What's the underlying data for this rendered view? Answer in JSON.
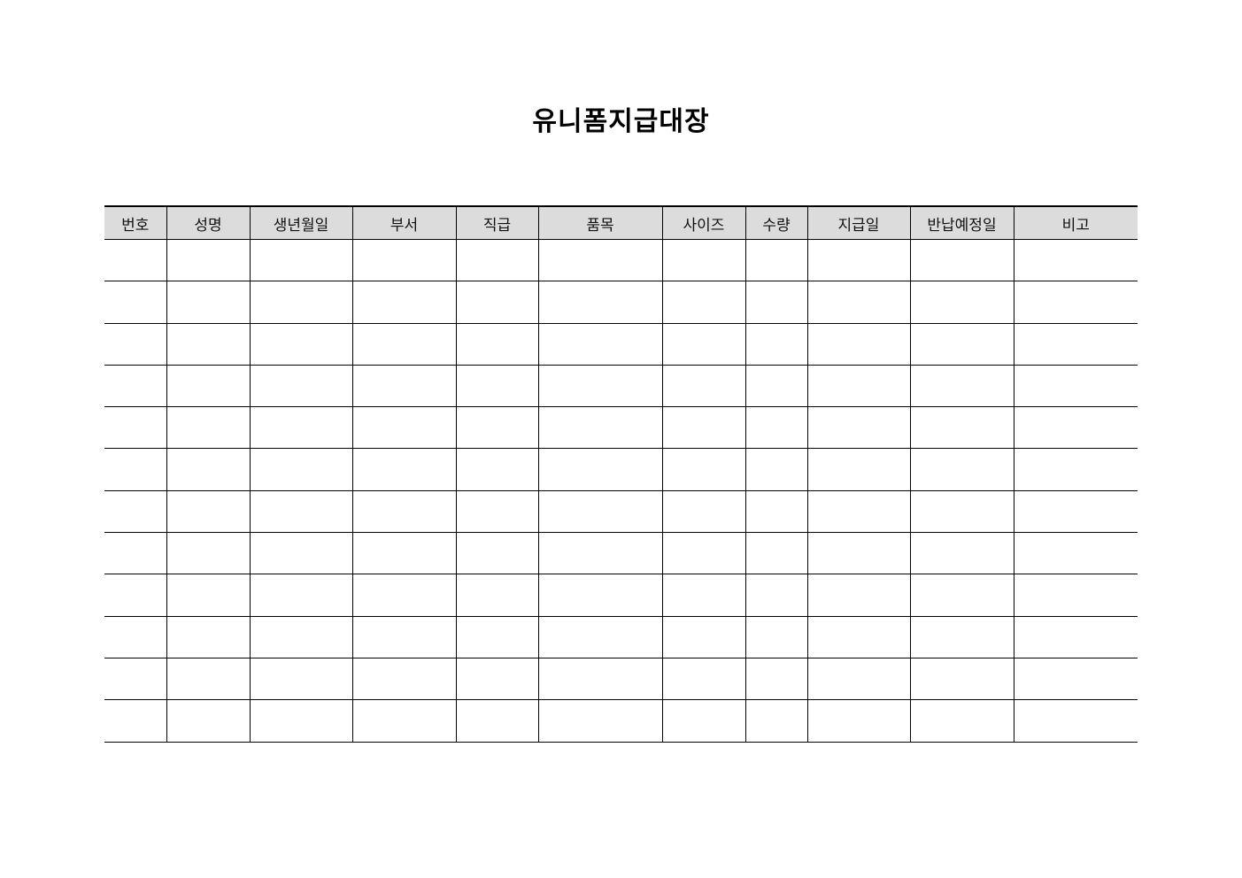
{
  "title": "유니폼지급대장",
  "columns": [
    "번호",
    "성명",
    "생년월일",
    "부서",
    "직급",
    "품목",
    "사이즈",
    "수량",
    "지급일",
    "반납예정일",
    "비고"
  ],
  "rows": [
    [
      "",
      "",
      "",
      "",
      "",
      "",
      "",
      "",
      "",
      "",
      ""
    ],
    [
      "",
      "",
      "",
      "",
      "",
      "",
      "",
      "",
      "",
      "",
      ""
    ],
    [
      "",
      "",
      "",
      "",
      "",
      "",
      "",
      "",
      "",
      "",
      ""
    ],
    [
      "",
      "",
      "",
      "",
      "",
      "",
      "",
      "",
      "",
      "",
      ""
    ],
    [
      "",
      "",
      "",
      "",
      "",
      "",
      "",
      "",
      "",
      "",
      ""
    ],
    [
      "",
      "",
      "",
      "",
      "",
      "",
      "",
      "",
      "",
      "",
      ""
    ],
    [
      "",
      "",
      "",
      "",
      "",
      "",
      "",
      "",
      "",
      "",
      ""
    ],
    [
      "",
      "",
      "",
      "",
      "",
      "",
      "",
      "",
      "",
      "",
      ""
    ],
    [
      "",
      "",
      "",
      "",
      "",
      "",
      "",
      "",
      "",
      "",
      ""
    ],
    [
      "",
      "",
      "",
      "",
      "",
      "",
      "",
      "",
      "",
      "",
      ""
    ],
    [
      "",
      "",
      "",
      "",
      "",
      "",
      "",
      "",
      "",
      "",
      ""
    ],
    [
      "",
      "",
      "",
      "",
      "",
      "",
      "",
      "",
      "",
      "",
      ""
    ]
  ],
  "colors": {
    "header_bg": "#dcdcdc"
  }
}
